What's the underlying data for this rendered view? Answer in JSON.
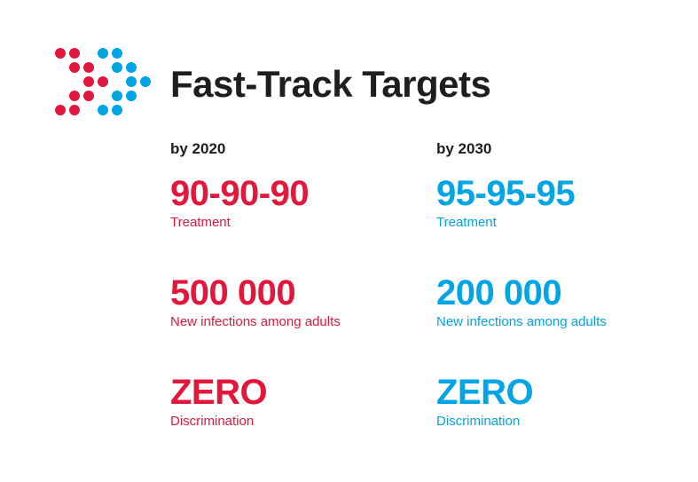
{
  "title": "Fast-Track Targets",
  "logo": {
    "name": "dot-arrow-logo",
    "colors": {
      "red": "#e3173c",
      "blue": "#00a5e6"
    }
  },
  "columns": [
    {
      "heading": "by 2020",
      "color": "#e3173c",
      "targets": [
        {
          "value": "90-90-90",
          "label": "Treatment"
        },
        {
          "value": "500 000",
          "label": "New infections among adults"
        },
        {
          "value": "ZERO",
          "label": "Discrimination"
        }
      ]
    },
    {
      "heading": "by 2030",
      "color": "#00a5e6",
      "targets": [
        {
          "value": "95-95-95",
          "label": "Treatment"
        },
        {
          "value": "200 000",
          "label": "New infections among adults"
        },
        {
          "value": "ZERO",
          "label": "Discrimination"
        }
      ]
    }
  ]
}
